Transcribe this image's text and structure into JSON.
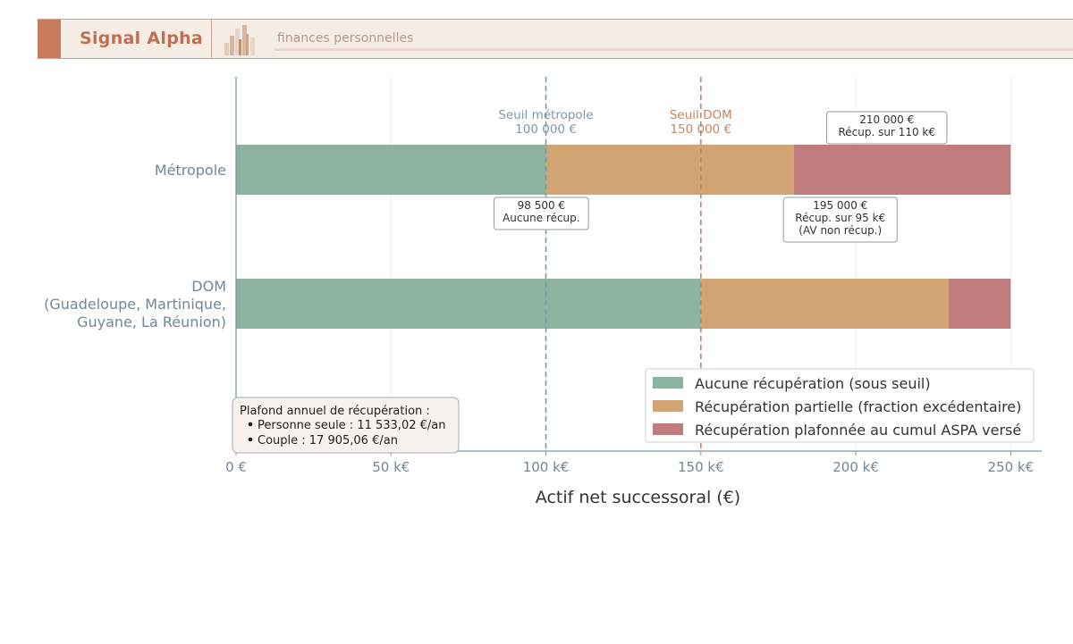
{
  "header": {
    "brand": "Signal Alpha",
    "tagline": "finances personnelles"
  },
  "colors": {
    "none": "#8bb3a0",
    "partial": "#d3a473",
    "capped": "#c07c7c",
    "axis": "#7c98ab",
    "label": "#6f8899",
    "dom_threshold": "#c98462",
    "metro_threshold": "#7c98ab"
  },
  "chart_data": {
    "type": "bar",
    "orientation": "horizontal",
    "stacked": true,
    "categories": [
      "Métropole",
      "DOM\n(Guadeloupe, Martinique,\nGuyane, La Réunion)"
    ],
    "series": [
      {
        "name": "Aucune récupération (sous seuil)",
        "key": "none",
        "values": [
          100000,
          150000
        ]
      },
      {
        "name": "Récupération partielle (fraction excédentaire)",
        "key": "partial",
        "values": [
          80000,
          80000
        ]
      },
      {
        "name": "Récupération plafonnée au cumul ASPA versé",
        "key": "capped",
        "values": [
          70000,
          20000
        ]
      }
    ],
    "xlabel": "Actif net successoral (€)",
    "ylabel": "",
    "xlim": [
      0,
      260000
    ],
    "xticks": [
      0,
      50000,
      100000,
      150000,
      200000,
      250000
    ],
    "xtick_labels": [
      "0 €",
      "50 k€",
      "100 k€",
      "150 k€",
      "200 k€",
      "250 k€"
    ],
    "grid": "vertical",
    "legend_position": "bottom-right",
    "thresholds": [
      {
        "value": 100000,
        "label": [
          "Seuil métropole",
          "100 000 €"
        ],
        "color_key": "metro_threshold"
      },
      {
        "value": 150000,
        "label": [
          "Seuil DOM",
          "150 000 €"
        ],
        "color_key": "dom_threshold"
      }
    ],
    "annotations": [
      {
        "x": 98500,
        "position": "below",
        "lines": [
          "98 500 €",
          "Aucune récup."
        ]
      },
      {
        "x": 195000,
        "position": "below",
        "lines": [
          "195 000 €",
          "Récup. sur 95 k€",
          "(AV non récup.)"
        ]
      },
      {
        "x": 210000,
        "position": "above",
        "lines": [
          "210 000 €",
          "Récup. sur 110 k€"
        ]
      }
    ],
    "note": {
      "title": "Plafond annuel de récupération :",
      "items": [
        "Personne seule : 11 533,02 €/an",
        "Couple : 17 905,06 €/an"
      ]
    }
  }
}
